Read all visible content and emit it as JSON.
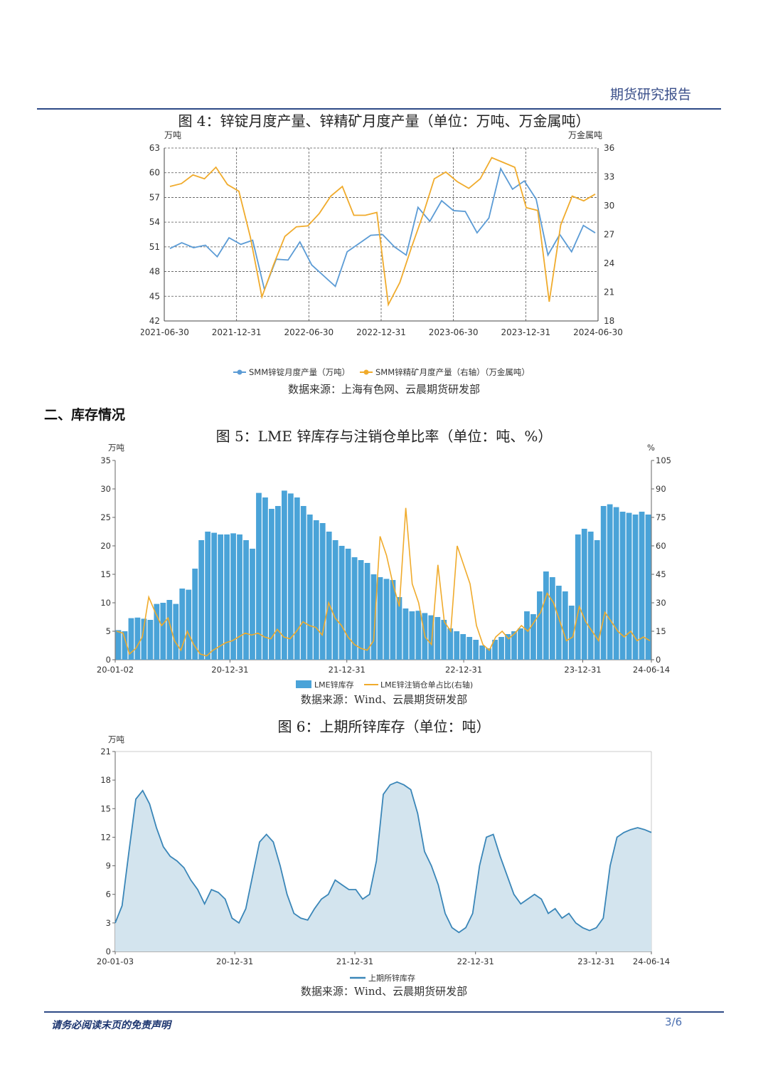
{
  "header": {
    "title": "期货研究报告"
  },
  "section": {
    "heading": "二、库存情况"
  },
  "figures": [
    {
      "caption": "图 4：锌锭月度产量、锌精矿月度产量（单位：万吨、万金属吨）",
      "source": "数据来源：上海有色网、云晨期货研发部"
    },
    {
      "caption": "图 5：LME 锌库存与注销仓单比率（单位：吨、%）",
      "source": "数据来源：Wind、云晨期货研发部"
    },
    {
      "caption": "图 6：上期所锌库存（单位：吨）",
      "source": "数据来源：Wind、云晨期货研发部"
    }
  ],
  "footer": {
    "disclaimer": "请务必阅读末页的免责声明",
    "page": "3/6"
  },
  "chart_data": [
    {
      "type": "line",
      "y_unit_left": "万吨",
      "y_unit_right": "万金属吨",
      "ylim_left": [
        42,
        63
      ],
      "yticks_left": [
        42,
        45,
        48,
        51,
        54,
        57,
        60,
        63
      ],
      "ylim_right": [
        18,
        36
      ],
      "yticks_right": [
        18,
        21,
        24,
        27,
        30,
        33,
        36
      ],
      "xtick_labels": [
        "2021-06-30",
        "2021-12-31",
        "2022-06-30",
        "2022-12-31",
        "2023-06-30",
        "2023-12-31",
        "2024-06-30"
      ],
      "grid": true,
      "legend_position": "bottom",
      "colors": {
        "left": "#5b9bd5",
        "right": "#f0ab2c"
      },
      "series": [
        {
          "name": "SMM锌锭月度产量（万吨）",
          "axis": "left",
          "values": [
            50.8,
            51.5,
            50.9,
            51.2,
            49.8,
            52.1,
            51.3,
            51.8,
            45.8,
            49.5,
            49.4,
            51.6,
            48.8,
            47.5,
            46.2,
            50.4,
            51.4,
            52.4,
            52.5,
            51.0,
            50.0,
            55.8,
            54.1,
            56.6,
            55.4,
            55.3,
            52.7,
            54.5,
            60.5,
            58.0,
            59.0,
            56.8,
            50.0,
            52.5,
            50.4,
            53.6,
            52.7
          ]
        },
        {
          "name": "SMM锌精矿月度产量（右轴）（万金属吨）",
          "axis": "right",
          "values": [
            32.0,
            32.3,
            33.2,
            32.8,
            34.0,
            32.2,
            31.5,
            26.7,
            20.5,
            23.8,
            26.8,
            27.8,
            27.9,
            29.2,
            31.0,
            32.0,
            29.0,
            29.0,
            29.3,
            19.7,
            22.0,
            25.6,
            29.0,
            32.8,
            33.5,
            32.5,
            31.8,
            32.8,
            35.0,
            34.5,
            34.0,
            29.8,
            29.5,
            20.0,
            28.0,
            31.0,
            30.5,
            31.2
          ]
        }
      ]
    },
    {
      "type": "bar",
      "y_unit_left": "万吨",
      "y_unit_right": "%",
      "ylim_left": [
        0,
        35
      ],
      "yticks_left": [
        0,
        5,
        10,
        15,
        20,
        25,
        30,
        35
      ],
      "ylim_right": [
        0,
        105
      ],
      "yticks_right": [
        0,
        15,
        30,
        45,
        60,
        75,
        90,
        105
      ],
      "xtick_labels": [
        "20-01-02",
        "20-12-31",
        "21-12-31",
        "22-12-31",
        "23-12-31",
        "24-06-14"
      ],
      "grid": false,
      "legend_position": "bottom",
      "colors": {
        "bar": "#4aa3d8",
        "line": "#f0ab2c"
      },
      "series": [
        {
          "name": "LME锌库存",
          "axis": "left",
          "kind": "bar",
          "values": [
            5.2,
            5.0,
            7.3,
            7.4,
            7.2,
            7.0,
            9.8,
            10.0,
            10.5,
            9.8,
            12.5,
            12.3,
            16.0,
            21.0,
            22.5,
            22.3,
            22.0,
            22.0,
            22.2,
            22.0,
            21.0,
            19.5,
            29.3,
            28.5,
            26.5,
            27.0,
            29.7,
            29.2,
            28.5,
            27.0,
            25.5,
            24.5,
            24.0,
            22.5,
            21.0,
            20.0,
            19.5,
            18.0,
            17.5,
            17.0,
            15.0,
            14.5,
            14.2,
            14.0,
            11.0,
            9.0,
            8.5,
            8.6,
            8.2,
            7.8,
            7.5,
            7.0,
            5.5,
            5.0,
            4.5,
            4.0,
            3.5,
            2.5,
            2.0,
            3.5,
            4.0,
            4.5,
            5.0,
            5.5,
            8.5,
            8.0,
            12.0,
            15.5,
            14.5,
            13.0,
            12.0,
            9.5,
            22.0,
            23.0,
            22.5,
            21.0,
            27.0,
            27.3,
            26.8,
            26.0,
            25.8,
            25.5,
            26.0,
            25.5
          ]
        },
        {
          "name": "LME锌注销仓单占比(右轴)",
          "axis": "right",
          "kind": "line",
          "values": [
            15,
            14,
            3,
            6,
            12,
            33,
            25,
            18,
            22,
            10,
            5,
            15,
            8,
            3,
            2,
            5,
            7,
            9,
            10,
            12,
            14,
            13,
            14,
            12,
            11,
            16,
            12,
            11,
            15,
            20,
            18,
            17,
            13,
            30,
            22,
            18,
            12,
            8,
            6,
            5,
            10,
            65,
            55,
            40,
            28,
            80,
            40,
            30,
            12,
            8,
            50,
            20,
            15,
            60,
            50,
            40,
            18,
            8,
            5,
            12,
            15,
            11,
            14,
            18,
            15,
            20,
            25,
            35,
            30,
            20,
            10,
            12,
            28,
            20,
            15,
            10,
            25,
            20,
            15,
            12,
            15,
            10,
            12,
            10
          ]
        }
      ]
    },
    {
      "type": "area",
      "y_unit_left": "万吨",
      "ylim_left": [
        0,
        21
      ],
      "yticks_left": [
        0,
        3,
        6,
        9,
        12,
        15,
        18,
        21
      ],
      "xtick_labels": [
        "20-01-03",
        "20-12-31",
        "21-12-31",
        "22-12-31",
        "23-12-31",
        "24-06-14"
      ],
      "grid": false,
      "legend_position": "bottom",
      "colors": {
        "line": "#3a86b8",
        "fill": "#d3e4ee"
      },
      "series": [
        {
          "name": "上期所锌库存",
          "values": [
            3.0,
            4.8,
            10.5,
            16.0,
            16.9,
            15.5,
            13.0,
            11.0,
            10.0,
            9.5,
            8.8,
            7.5,
            6.5,
            5.0,
            6.5,
            6.2,
            5.5,
            3.5,
            3.0,
            4.5,
            8.0,
            11.5,
            12.3,
            11.5,
            9.0,
            6.0,
            4.0,
            3.5,
            3.3,
            4.5,
            5.5,
            6.0,
            7.5,
            7.0,
            6.5,
            6.5,
            5.5,
            6.0,
            9.5,
            16.5,
            17.5,
            17.8,
            17.5,
            17.0,
            14.5,
            10.5,
            9.0,
            7.0,
            4.0,
            2.5,
            2.0,
            2.5,
            4.0,
            9.0,
            12.0,
            12.3,
            10.0,
            8.0,
            6.0,
            5.0,
            5.5,
            6.0,
            5.5,
            4.0,
            4.5,
            3.5,
            4.0,
            3.0,
            2.5,
            2.2,
            2.5,
            3.5,
            9.0,
            12.0,
            12.5,
            12.8,
            13.0,
            12.8,
            12.5
          ]
        }
      ]
    }
  ]
}
